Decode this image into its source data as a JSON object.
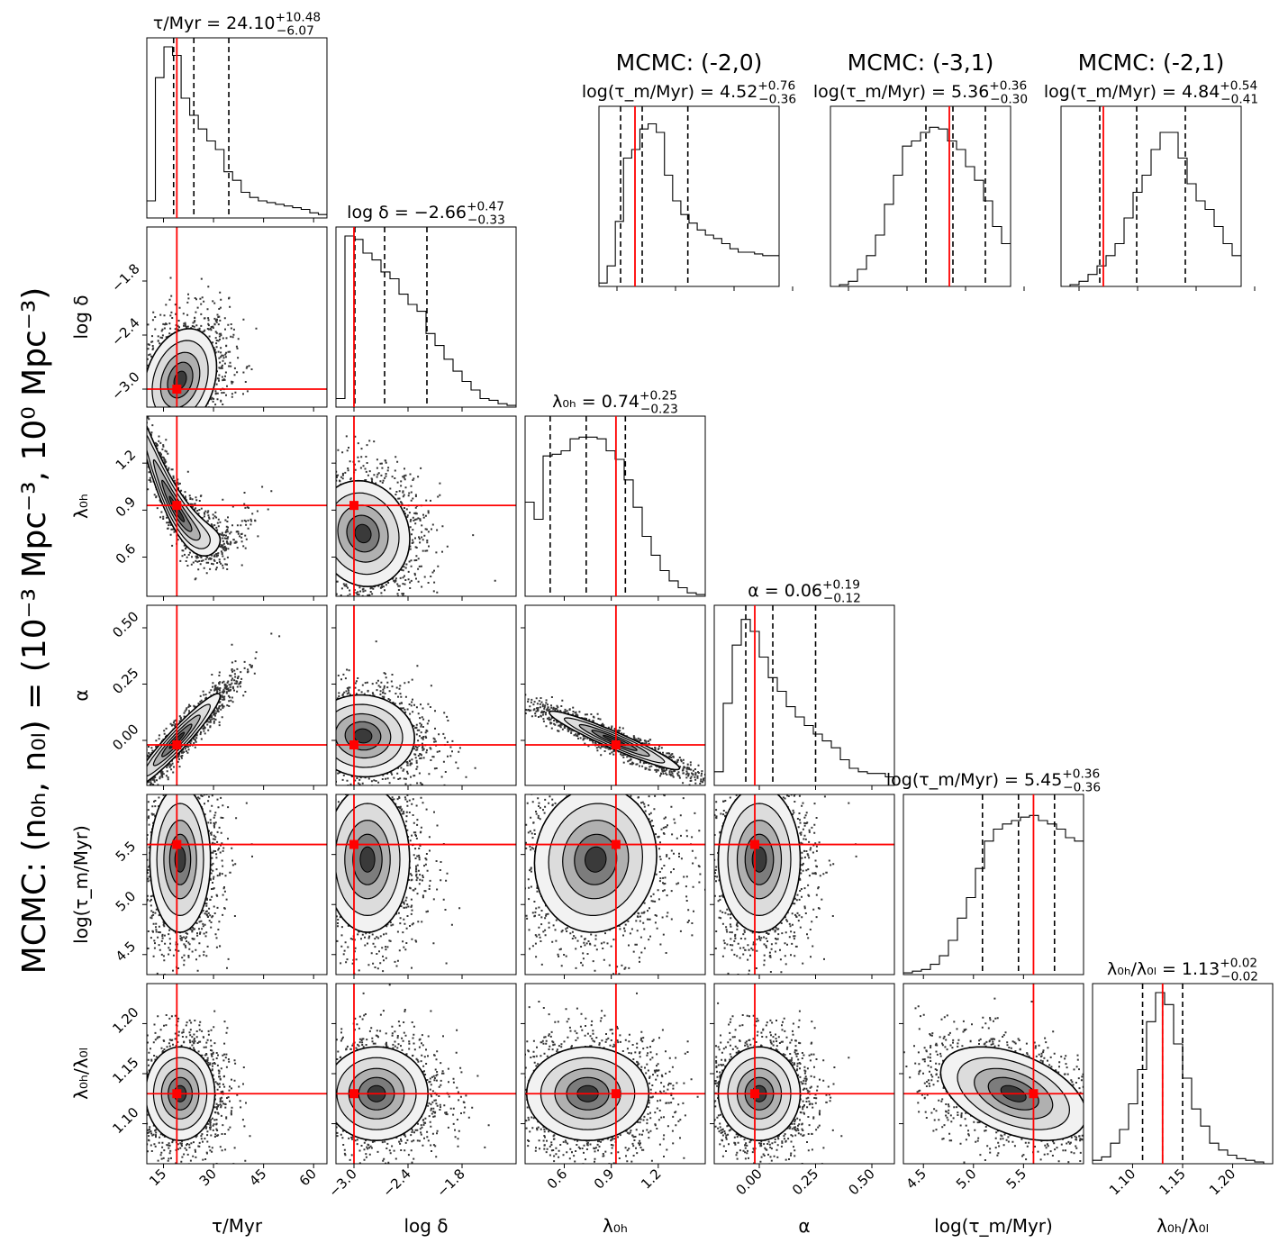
{
  "figure": {
    "super_label": "MCMC: (n₀ₕ, n₀ₗ) = (10⁻³ Mpc⁻³, 10⁰ Mpc⁻³)",
    "colors": {
      "truth": "#ff0000",
      "ink": "#000000",
      "frame": "#000000"
    }
  },
  "chart_data": {
    "type": "corner",
    "parameters": [
      {
        "key": "tau",
        "label": "τ/Myr",
        "range": [
          10,
          64
        ],
        "ticks": [
          15,
          30,
          45,
          60
        ],
        "tick_labels": [
          "15",
          "30",
          "45",
          "60"
        ],
        "truth": 19,
        "title": "τ/Myr = 24.10",
        "title_plus": "+10.48",
        "title_minus": "−6.07",
        "quantiles": [
          18.03,
          24.1,
          34.58
        ],
        "hist": [
          0.1,
          0.82,
          1.0,
          0.95,
          0.7,
          0.6,
          0.52,
          0.45,
          0.4,
          0.27,
          0.22,
          0.15,
          0.12,
          0.1,
          0.09,
          0.08,
          0.07,
          0.06,
          0.05,
          0.03,
          0.02
        ]
      },
      {
        "key": "logdelta",
        "label": "log δ",
        "range": [
          -3.2,
          -1.2
        ],
        "ticks": [
          -3.0,
          -2.4,
          -1.8
        ],
        "tick_labels": [
          "−3.0",
          "−2.4",
          "−1.8"
        ],
        "truth": -3.0,
        "title": "log δ = −2.66",
        "title_plus": "+0.47",
        "title_minus": "−0.33",
        "quantiles": [
          -2.99,
          -2.66,
          -2.19
        ],
        "hist": [
          0.05,
          1.0,
          0.98,
          0.9,
          0.86,
          0.79,
          0.75,
          0.66,
          0.6,
          0.56,
          0.43,
          0.36,
          0.28,
          0.21,
          0.15,
          0.1,
          0.05,
          0.04,
          0.02,
          0.01
        ]
      },
      {
        "key": "lambda0h",
        "label": "λ₀ₕ",
        "range": [
          0.35,
          1.5
        ],
        "ticks": [
          0.6,
          0.9,
          1.2
        ],
        "tick_labels": [
          "0.6",
          "0.9",
          "1.2"
        ],
        "truth": 0.93,
        "title": "λ₀ₕ = 0.74",
        "title_plus": "+0.25",
        "title_minus": "−0.23",
        "quantiles": [
          0.51,
          0.74,
          0.99
        ],
        "hist": [
          0.55,
          0.45,
          0.82,
          0.83,
          0.85,
          0.92,
          0.93,
          0.93,
          0.92,
          0.85,
          0.8,
          0.68,
          0.52,
          0.35,
          0.24,
          0.15,
          0.09,
          0.05,
          0.02,
          0.01
        ]
      },
      {
        "key": "alpha",
        "label": "α",
        "range": [
          -0.2,
          0.6
        ],
        "ticks": [
          0.0,
          0.25,
          0.5
        ],
        "tick_labels": [
          "0.00",
          "0.25",
          "0.50"
        ],
        "truth": -0.02,
        "title": "α = 0.06",
        "title_plus": "+0.19",
        "title_minus": "−0.12",
        "quantiles": [
          -0.06,
          0.06,
          0.25
        ],
        "hist": [
          0.08,
          0.48,
          0.82,
          0.97,
          0.9,
          0.75,
          0.63,
          0.55,
          0.46,
          0.4,
          0.35,
          0.3,
          0.26,
          0.22,
          0.15,
          0.1,
          0.08,
          0.07,
          0.07,
          0.05
        ]
      },
      {
        "key": "logtaum",
        "label": "log(τ_m/Myr)",
        "range": [
          4.3,
          6.1
        ],
        "ticks": [
          4.5,
          5.0,
          5.5
        ],
        "tick_labels": [
          "4.5",
          "5.0",
          "5.5"
        ],
        "truth": 5.6,
        "title": "log(τ_m/Myr) = 5.45",
        "title_plus": "+0.36",
        "title_minus": "−0.36",
        "quantiles": [
          5.09,
          5.45,
          5.81
        ],
        "hist": [
          0.01,
          0.02,
          0.03,
          0.06,
          0.11,
          0.2,
          0.33,
          0.45,
          0.62,
          0.78,
          0.85,
          0.88,
          0.9,
          0.92,
          0.93,
          0.9,
          0.88,
          0.85,
          0.8,
          0.78
        ]
      },
      {
        "key": "ratio",
        "label": "λ₀ₕ/λ₀ₗ",
        "range": [
          1.06,
          1.24
        ],
        "ticks": [
          1.1,
          1.15,
          1.2
        ],
        "tick_labels": [
          "1.10",
          "1.15",
          "1.20"
        ],
        "truth": 1.13,
        "title": "λ₀ₕ/λ₀ₗ = 1.13",
        "title_plus": "+0.02",
        "title_minus": "−0.02",
        "quantiles": [
          1.11,
          1.13,
          1.15
        ],
        "hist": [
          0.02,
          0.04,
          0.12,
          0.2,
          0.35,
          0.55,
          0.83,
          1.0,
          0.93,
          0.7,
          0.5,
          0.32,
          0.22,
          0.12,
          0.08,
          0.05,
          0.03,
          0.02,
          0.01,
          0.0
        ]
      }
    ],
    "joint": {
      "1_0": {
        "center": [
          20,
          -2.9
        ],
        "scale": [
          4.2,
          0.22
        ],
        "rho": 0.25
      },
      "2_0": {
        "center": [
          19,
          0.9
        ],
        "scale": [
          5.0,
          0.18
        ],
        "rho": -0.95,
        "curved": true
      },
      "2_1": {
        "center": [
          -2.9,
          0.75
        ],
        "scale": [
          0.2,
          0.13
        ],
        "rho": -0.1
      },
      "3_0": {
        "center": [
          19,
          0.0
        ],
        "scale": [
          5.0,
          0.08
        ],
        "rho": 0.95
      },
      "3_1": {
        "center": [
          -2.9,
          0.02
        ],
        "scale": [
          0.22,
          0.07
        ],
        "rho": -0.05
      },
      "3_2": {
        "center": [
          0.92,
          0.0
        ],
        "scale": [
          0.16,
          0.05
        ],
        "rho": -0.95,
        "curved": true
      },
      "4_0": {
        "center": [
          20,
          5.45
        ],
        "scale": [
          3.5,
          0.28
        ],
        "rho": 0.0
      },
      "4_1": {
        "center": [
          -2.85,
          5.45
        ],
        "scale": [
          0.18,
          0.28
        ],
        "rho": 0.0
      },
      "4_2": {
        "center": [
          0.8,
          5.45
        ],
        "scale": [
          0.15,
          0.28
        ],
        "rho": 0.05
      },
      "4_3": {
        "center": [
          0.0,
          5.45
        ],
        "scale": [
          0.07,
          0.28
        ],
        "rho": 0.0
      },
      "5_0": {
        "center": [
          20,
          1.13
        ],
        "scale": [
          4.0,
          0.018
        ],
        "rho": 0.0
      },
      "5_1": {
        "center": [
          -2.75,
          1.13
        ],
        "scale": [
          0.22,
          0.018
        ],
        "rho": 0.0
      },
      "5_2": {
        "center": [
          0.75,
          1.13
        ],
        "scale": [
          0.15,
          0.018
        ],
        "rho": 0.0
      },
      "5_3": {
        "center": [
          0.0,
          1.13
        ],
        "scale": [
          0.07,
          0.018
        ],
        "rho": 0.0
      },
      "5_4": {
        "center": [
          5.4,
          1.13
        ],
        "scale": [
          0.28,
          0.018
        ],
        "rho": -0.45
      }
    },
    "inset_panels": [
      {
        "heading": "MCMC: (-2,0)",
        "title": "log(τ_m/Myr) = 4.52",
        "title_plus": "+0.76",
        "title_minus": "−0.36",
        "range": [
          3.8,
          6.8
        ],
        "quantiles": [
          4.16,
          4.52,
          5.28
        ],
        "truth": 4.4,
        "hist": [
          0.02,
          0.12,
          0.38,
          0.75,
          0.8,
          0.92,
          0.95,
          0.9,
          0.65,
          0.5,
          0.42,
          0.37,
          0.33,
          0.3,
          0.28,
          0.25,
          0.22,
          0.2,
          0.2,
          0.19,
          0.18,
          0.18
        ]
      },
      {
        "heading": "MCMC: (-3,1)",
        "title": "log(τ_m/Myr) = 5.36",
        "title_plus": "+0.36",
        "title_minus": "−0.30",
        "range": [
          4.0,
          6.0
        ],
        "quantiles": [
          5.06,
          5.36,
          5.72
        ],
        "truth": 5.32,
        "hist": [
          0.0,
          0.01,
          0.03,
          0.1,
          0.18,
          0.3,
          0.48,
          0.65,
          0.82,
          0.85,
          0.9,
          0.93,
          0.92,
          0.85,
          0.8,
          0.7,
          0.62,
          0.5,
          0.35,
          0.25
        ]
      },
      {
        "heading": "MCMC: (-2,1)",
        "title": "log(τ_m/Myr) = 4.84",
        "title_plus": "+0.54",
        "title_minus": "−0.41",
        "range": [
          4.0,
          6.0
        ],
        "quantiles": [
          4.43,
          4.84,
          5.38
        ],
        "truth": 4.47,
        "hist": [
          0.0,
          0.01,
          0.03,
          0.07,
          0.12,
          0.18,
          0.25,
          0.4,
          0.55,
          0.65,
          0.8,
          0.9,
          0.9,
          0.75,
          0.6,
          0.5,
          0.45,
          0.35,
          0.25,
          0.18
        ]
      }
    ]
  }
}
